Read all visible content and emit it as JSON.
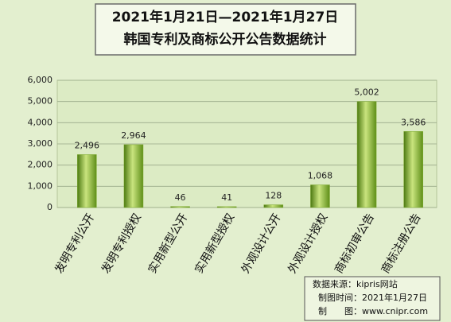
{
  "chart_data": {
    "type": "bar",
    "title": [
      "2021年1月21日—2021年1月27日",
      "韩国专利及商标公开公告数据统计"
    ],
    "categories": [
      "发明专利公开",
      "发明专利授权",
      "实用新型公开",
      "实用新型授权",
      "外观设计公开",
      "外观设计授权",
      "商标初审公告",
      "商标注册公告"
    ],
    "values": [
      2496,
      2964,
      46,
      41,
      128,
      1068,
      5002,
      3586
    ],
    "value_labels": [
      "2,496",
      "2,964",
      "46",
      "41",
      "128",
      "1,068",
      "5,002",
      "3,586"
    ],
    "color": "#7aa82a",
    "ylim": [
      0,
      6000
    ],
    "yticks": [
      0,
      {
        "value": 1000,
        "label": "1,000"
      },
      {
        "value": 2000,
        "label": "2,000"
      },
      {
        "value": 3000,
        "label": "3,000"
      },
      {
        "value": 4000,
        "label": "4,000"
      },
      {
        "value": 5000,
        "label": "5,000"
      },
      {
        "value": 6000,
        "label": "6,000"
      }
    ],
    "grid": true,
    "source_lines": [
      "数据来源：kipris网站",
      "制图时间：2021年1月27日",
      "制　　图：www.cnipr.com"
    ]
  }
}
